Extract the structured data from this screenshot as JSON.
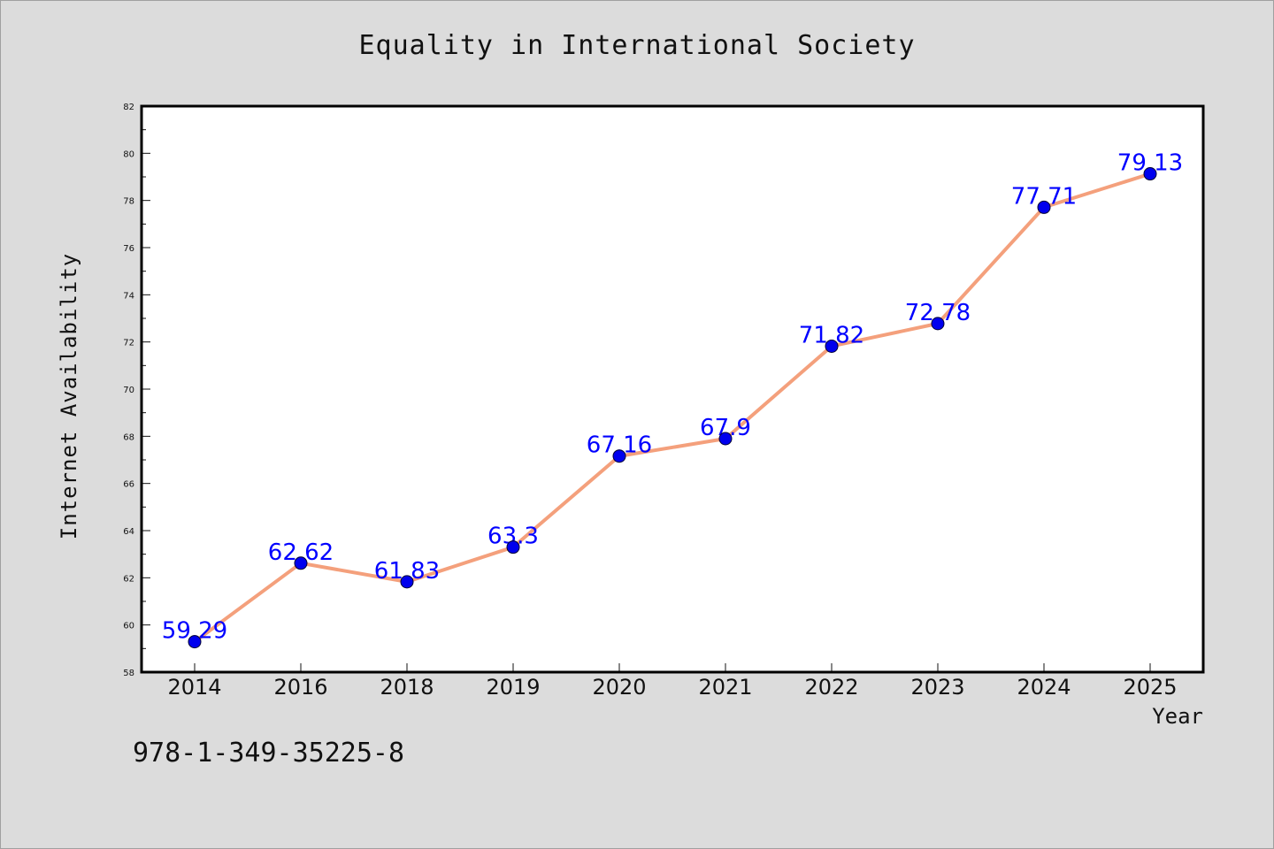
{
  "chart_data": {
    "type": "line",
    "title": "Equality in International Society",
    "xlabel": "Year",
    "ylabel": "Internet Availability",
    "categories": [
      "2014",
      "2016",
      "2018",
      "2019",
      "2020",
      "2021",
      "2022",
      "2023",
      "2024",
      "2025"
    ],
    "series": [
      {
        "values": [
          59.29,
          62.62,
          61.83,
          63.3,
          67.16,
          67.9,
          71.82,
          72.78,
          77.71,
          79.13
        ],
        "data_labels": [
          "59.29",
          "62.62",
          "61.83",
          "63.3",
          "67.16",
          "67.9",
          "71.82",
          "72.78",
          "77.71",
          "79.13"
        ],
        "line_color": "#f4a07c",
        "marker_color": "#0000ee"
      }
    ],
    "ylim": [
      58,
      82
    ],
    "yticks": [
      58,
      60,
      62,
      64,
      66,
      68,
      70,
      72,
      74,
      76,
      78,
      80,
      82
    ],
    "grid": false,
    "legend": "none"
  },
  "footer_text": "978-1-349-35225-8"
}
